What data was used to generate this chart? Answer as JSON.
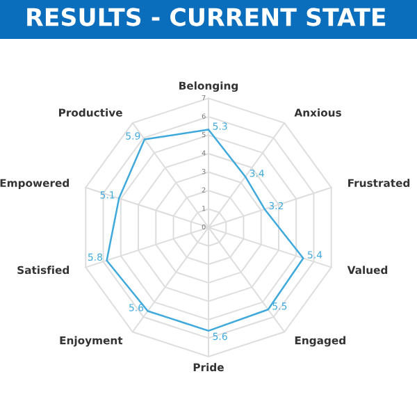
{
  "chart_data": {
    "type": "radar",
    "title": "RESULTS - CURRENT STATE",
    "categories": [
      "Belonging",
      "Anxious",
      "Frustrated",
      "Valued",
      "Engaged",
      "Pride",
      "Enjoyment",
      "Satisfied",
      "Empowered",
      "Productive"
    ],
    "series": [
      {
        "color": "#3fa9dc",
        "values": [
          5.3,
          3.4,
          3.2,
          5.4,
          5.5,
          5.6,
          5.6,
          5.8,
          5.1,
          5.9
        ]
      }
    ],
    "ylim": [
      0,
      7
    ],
    "yticks": [
      0,
      1,
      2,
      3,
      4,
      5,
      6,
      7
    ],
    "data_labels": true,
    "grid": true,
    "legend": false,
    "marker": "none"
  }
}
